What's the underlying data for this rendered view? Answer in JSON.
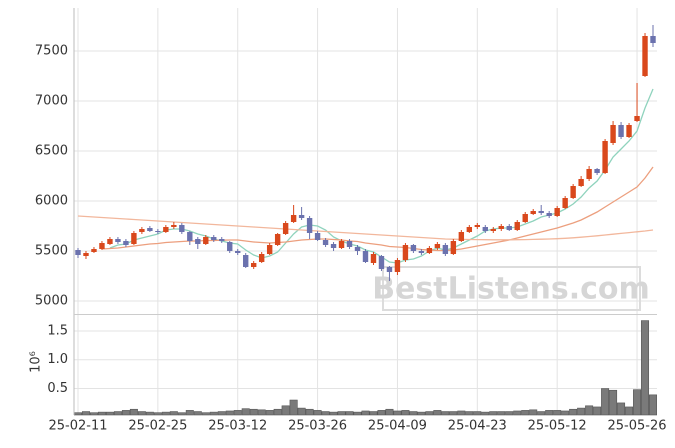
{
  "chart_data": [
    {
      "type": "candlestick",
      "up_color": "#d9481c",
      "down_color": "#6b72ae",
      "open": [
        5510,
        5450,
        5490,
        5520,
        5570,
        5620,
        5600,
        5570,
        5690,
        5730,
        5700,
        5690,
        5740,
        5760,
        5690,
        5620,
        5570,
        5640,
        5620,
        5590,
        5500,
        5460,
        5340,
        5390,
        5470,
        5560,
        5670,
        5790,
        5860,
        5830,
        5680,
        5610,
        5570,
        5530,
        5600,
        5540,
        5500,
        5380,
        5450,
        5340,
        5290,
        5410,
        5560,
        5500,
        5480,
        5530,
        5560,
        5470,
        5600,
        5690,
        5740,
        5740,
        5700,
        5720,
        5750,
        5710,
        5790,
        5870,
        5900,
        5880,
        5850,
        5930,
        6030,
        6150,
        6220,
        6320,
        6280,
        6580,
        6760,
        6640,
        6800,
        7250,
        7650
      ],
      "high": [
        5530,
        5500,
        5540,
        5600,
        5640,
        5640,
        5620,
        5700,
        5740,
        5750,
        5720,
        5760,
        5790,
        5780,
        5700,
        5640,
        5660,
        5660,
        5640,
        5600,
        5520,
        5480,
        5400,
        5490,
        5580,
        5680,
        5800,
        5960,
        5940,
        5850,
        5700,
        5630,
        5590,
        5620,
        5620,
        5560,
        5520,
        5490,
        5460,
        5350,
        5430,
        5580,
        5570,
        5520,
        5550,
        5590,
        5580,
        5620,
        5710,
        5760,
        5780,
        5760,
        5740,
        5770,
        5770,
        5810,
        5890,
        5920,
        5960,
        5900,
        5950,
        6050,
        6170,
        6250,
        6350,
        6330,
        6620,
        6800,
        6790,
        6780,
        7180,
        7680,
        7760
      ],
      "low": [
        5430,
        5420,
        5480,
        5510,
        5560,
        5570,
        5540,
        5560,
        5670,
        5690,
        5670,
        5680,
        5720,
        5670,
        5560,
        5520,
        5560,
        5590,
        5580,
        5480,
        5460,
        5330,
        5320,
        5380,
        5460,
        5550,
        5660,
        5780,
        5810,
        5620,
        5600,
        5540,
        5500,
        5520,
        5520,
        5460,
        5380,
        5360,
        5300,
        5200,
        5260,
        5390,
        5480,
        5460,
        5470,
        5510,
        5450,
        5460,
        5590,
        5680,
        5720,
        5680,
        5680,
        5700,
        5700,
        5700,
        5780,
        5860,
        5860,
        5830,
        5840,
        5920,
        6020,
        6140,
        6200,
        6260,
        6270,
        6560,
        6620,
        6630,
        6790,
        7240,
        7540
      ],
      "close": [
        5460,
        5480,
        5520,
        5580,
        5620,
        5590,
        5560,
        5680,
        5720,
        5700,
        5690,
        5740,
        5760,
        5690,
        5600,
        5570,
        5640,
        5610,
        5600,
        5500,
        5480,
        5340,
        5380,
        5470,
        5560,
        5670,
        5780,
        5860,
        5830,
        5680,
        5610,
        5560,
        5530,
        5600,
        5540,
        5500,
        5390,
        5470,
        5320,
        5290,
        5410,
        5560,
        5500,
        5480,
        5530,
        5570,
        5470,
        5600,
        5690,
        5740,
        5760,
        5700,
        5720,
        5750,
        5710,
        5790,
        5870,
        5900,
        5880,
        5850,
        5930,
        6030,
        6150,
        6220,
        6320,
        6280,
        6600,
        6760,
        6640,
        6760,
        6850,
        7650,
        7580
      ],
      "ma_lines": [
        {
          "color": "#8fd3bd",
          "values": [
            null,
            null,
            null,
            null,
            5530,
            5560,
            5570,
            5610,
            5630,
            5650,
            5670,
            5710,
            5720,
            5720,
            5700,
            5670,
            5650,
            5620,
            5600,
            5580,
            5570,
            5510,
            5460,
            5430,
            5450,
            5490,
            5580,
            5670,
            5740,
            5760,
            5750,
            5710,
            5640,
            5600,
            5570,
            5550,
            5510,
            5490,
            5440,
            5390,
            5380,
            5410,
            5420,
            5450,
            5500,
            5530,
            5510,
            5530,
            5570,
            5610,
            5650,
            5700,
            5720,
            5730,
            5730,
            5740,
            5770,
            5800,
            5840,
            5860,
            5880,
            5920,
            5970,
            6040,
            6130,
            6200,
            6310,
            6440,
            6520,
            6600,
            6700,
            6930,
            7120
          ]
        },
        {
          "color": "#ec9f7e",
          "values": [
            null,
            null,
            null,
            5520,
            5525,
            5530,
            5540,
            5550,
            5560,
            5570,
            5575,
            5585,
            5590,
            5595,
            5600,
            5600,
            5605,
            5605,
            5608,
            5610,
            5610,
            5600,
            5590,
            5585,
            5580,
            5585,
            5590,
            5600,
            5610,
            5615,
            5620,
            5620,
            5615,
            5610,
            5600,
            5595,
            5580,
            5570,
            5560,
            5545,
            5540,
            5535,
            5525,
            5515,
            5510,
            5505,
            5505,
            5510,
            5520,
            5535,
            5550,
            5565,
            5580,
            5595,
            5610,
            5630,
            5650,
            5670,
            5690,
            5710,
            5730,
            5755,
            5780,
            5810,
            5850,
            5890,
            5940,
            5990,
            6040,
            6090,
            6140,
            6230,
            6340
          ]
        },
        {
          "color": "#f2b79c",
          "values": [
            5850,
            5845,
            5840,
            5835,
            5830,
            5825,
            5820,
            5815,
            5810,
            5805,
            5800,
            5795,
            5790,
            5785,
            5780,
            5775,
            5770,
            5765,
            5760,
            5755,
            5750,
            5745,
            5740,
            5735,
            5730,
            5725,
            5720,
            5715,
            5710,
            5705,
            5700,
            5695,
            5690,
            5685,
            5680,
            5675,
            5670,
            5665,
            5660,
            5655,
            5650,
            5645,
            5640,
            5635,
            5630,
            5625,
            5620,
            5618,
            5616,
            5615,
            5614,
            5613,
            5612,
            5612,
            5612,
            5613,
            5614,
            5616,
            5618,
            5620,
            5623,
            5627,
            5632,
            5638,
            5645,
            5652,
            5660,
            5668,
            5676,
            5684,
            5692,
            5700,
            5710
          ]
        }
      ],
      "ylim": [
        4870,
        7930
      ],
      "yticks": [
        5000,
        5500,
        6000,
        6500,
        7000,
        7500
      ],
      "grid": true,
      "watermark": "BestListens.com"
    },
    {
      "type": "bar",
      "color": "#7a7a7a",
      "categories": [
        "25-02-11",
        null,
        null,
        null,
        null,
        null,
        null,
        null,
        null,
        null,
        "25-02-25",
        null,
        null,
        null,
        null,
        null,
        null,
        null,
        null,
        null,
        "25-03-12",
        null,
        null,
        null,
        null,
        null,
        null,
        null,
        null,
        null,
        "25-03-26",
        null,
        null,
        null,
        null,
        null,
        null,
        null,
        null,
        null,
        "25-04-09",
        null,
        null,
        null,
        null,
        null,
        null,
        null,
        null,
        null,
        "25-04-23",
        null,
        null,
        null,
        null,
        null,
        null,
        null,
        null,
        null,
        "25-05-12",
        null,
        null,
        null,
        null,
        null,
        null,
        null,
        null,
        null,
        "25-05-26",
        null,
        null
      ],
      "values": [
        0.08,
        0.1,
        0.08,
        0.09,
        0.09,
        0.1,
        0.12,
        0.14,
        0.1,
        0.09,
        0.08,
        0.09,
        0.1,
        0.08,
        0.12,
        0.1,
        0.08,
        0.09,
        0.1,
        0.11,
        0.12,
        0.15,
        0.14,
        0.13,
        0.12,
        0.14,
        0.2,
        0.3,
        0.16,
        0.14,
        0.12,
        0.1,
        0.09,
        0.1,
        0.1,
        0.09,
        0.11,
        0.1,
        0.12,
        0.14,
        0.11,
        0.12,
        0.1,
        0.09,
        0.1,
        0.12,
        0.1,
        0.1,
        0.11,
        0.1,
        0.1,
        0.09,
        0.1,
        0.1,
        0.1,
        0.11,
        0.12,
        0.13,
        0.1,
        0.12,
        0.12,
        0.11,
        0.14,
        0.16,
        0.2,
        0.18,
        0.5,
        0.47,
        0.25,
        0.18,
        0.48,
        1.68,
        0.39
      ],
      "ylim": [
        0.04,
        1.76
      ],
      "yticks": [
        0.5,
        {
          "value": 1.0,
          "label": "1.0"
        },
        1.5
      ],
      "grid": true,
      "ylabel": "10⁶"
    }
  ]
}
